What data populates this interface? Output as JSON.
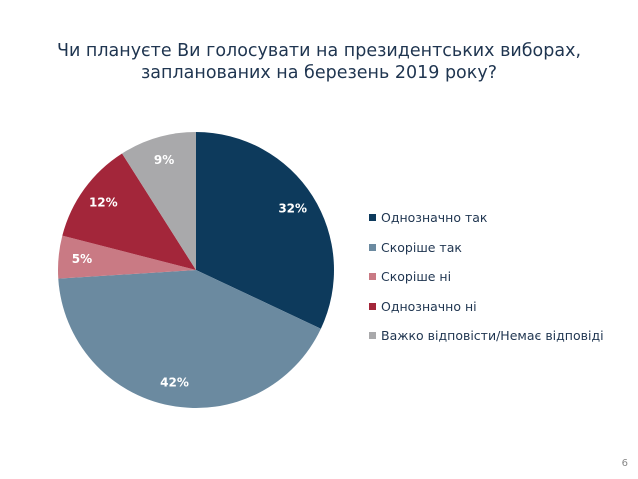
{
  "chart_data": {
    "type": "pie",
    "title_line1": "Чи плануєте Ви голосувати на президентських виборах,",
    "title_line2": "запланованих на березень 2019 року?",
    "categories": [
      "Однозначно так",
      "Скоріше так",
      "Скоріше ні",
      "Однозначно ні",
      "Важко відповісти/Немає відповіді"
    ],
    "values": [
      32,
      42,
      5,
      12,
      9
    ],
    "labels": [
      "32%",
      "42%",
      "5%",
      "12%",
      "9%"
    ],
    "colors": [
      "#0d3a5c",
      "#6b8aa0",
      "#c97a84",
      "#a3263a",
      "#a9a9ab"
    ],
    "legend_position": "right"
  },
  "page_number": "6"
}
